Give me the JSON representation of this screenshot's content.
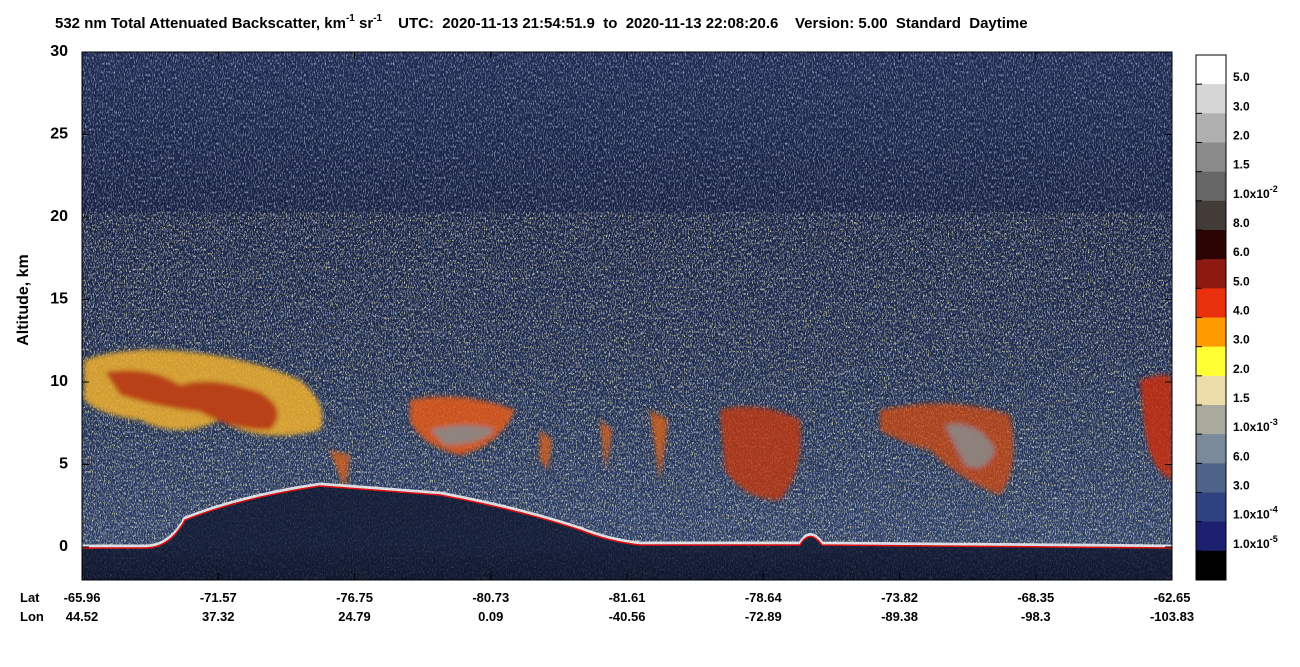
{
  "chart_data": {
    "type": "heatmap",
    "title_parts": [
      "532 nm Total Attenuated Backscatter, km",
      "-1",
      " sr",
      "-1",
      "UTC:  2020-11-13 21:54:51.9  to  2020-11-13 22:08:20.6    Version: 5.00  Standard  Daytime"
    ],
    "y_label": "Altitude, km",
    "ylim": [
      -2,
      30
    ],
    "yticks": [
      0,
      5,
      10,
      15,
      20,
      25,
      30
    ],
    "x_rows": [
      {
        "name": "Lat",
        "values": [
          -65.96,
          -71.57,
          -76.75,
          -80.73,
          -81.61,
          -78.64,
          -73.82,
          -68.35,
          -62.65
        ]
      },
      {
        "name": "Lon",
        "values": [
          44.52,
          37.32,
          24.79,
          0.09,
          -40.56,
          -72.89,
          -89.38,
          -98.3,
          -103.83
        ]
      }
    ],
    "colorbar": {
      "colors": [
        "#ffffff",
        "#d6d6d6",
        "#b0b0b0",
        "#8a8a8a",
        "#666666",
        "#433b38",
        "#2a0504",
        "#8c1a10",
        "#e8300c",
        "#ff9a00",
        "#ffff33",
        "#ecdcaa",
        "#a9a99d",
        "#7b8a9a",
        "#4d6388",
        "#2e4282",
        "#1c206e",
        "#000000"
      ],
      "labels": [
        {
          "text": "5.0"
        },
        {
          "text": "3.0"
        },
        {
          "text": "2.0"
        },
        {
          "text": "1.5"
        },
        {
          "text": "1.0x10",
          "sup": "-2"
        },
        {
          "text": "8.0"
        },
        {
          "text": "6.0"
        },
        {
          "text": "5.0"
        },
        {
          "text": "4.0"
        },
        {
          "text": "3.0"
        },
        {
          "text": "2.0"
        },
        {
          "text": "1.5"
        },
        {
          "text": "1.0x10",
          "sup": "-3"
        },
        {
          "text": "6.0"
        },
        {
          "text": "3.0"
        },
        {
          "text": "1.0x10",
          "sup": "-4"
        },
        {
          "text": "1.0x10",
          "sup": "-5"
        }
      ]
    }
  }
}
